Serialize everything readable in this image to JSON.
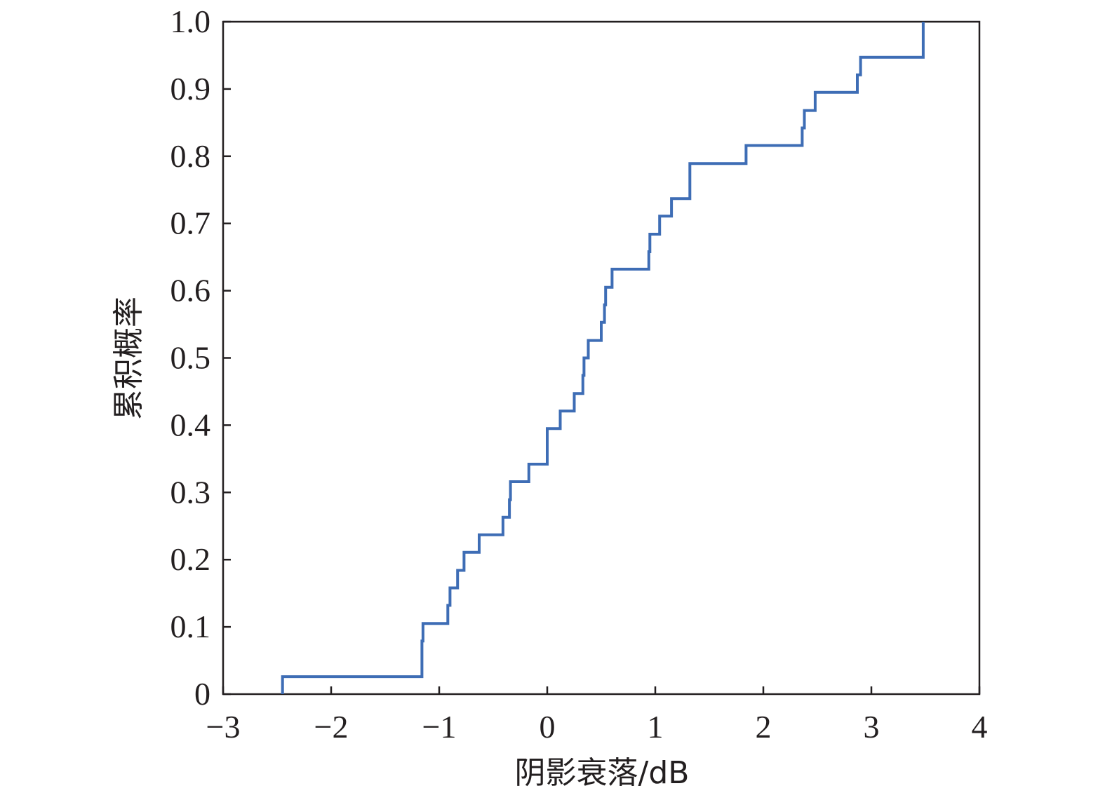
{
  "chart_data": {
    "type": "line",
    "step": true,
    "xlabel": "阴影衰落/dB",
    "ylabel": "累积概率",
    "xlim": [
      -3,
      4
    ],
    "ylim": [
      0,
      1.0
    ],
    "xticks": [
      -3,
      -2,
      -1,
      0,
      1,
      2,
      3,
      4
    ],
    "xtick_labels": [
      "−3",
      "−2",
      "−1",
      "0",
      "1",
      "2",
      "3",
      "4"
    ],
    "yticks": [
      0,
      0.1,
      0.2,
      0.3,
      0.4,
      0.5,
      0.6,
      0.7,
      0.8,
      0.9,
      1.0
    ],
    "ytick_labels": [
      "0",
      "0.1",
      "0.2",
      "0.3",
      "0.4",
      "0.5",
      "0.6",
      "0.7",
      "0.8",
      "0.9",
      "1.0"
    ],
    "grid": false,
    "line_color": "#3e6db5",
    "series": [
      {
        "x": [
          -2.45,
          -2.45,
          -1.16,
          -1.16,
          -1.15,
          -0.92,
          -0.92,
          -0.9,
          -0.83,
          -0.77,
          -0.63,
          -0.41,
          -0.35,
          -0.34,
          -0.18,
          -0.17,
          0.0,
          0.12,
          0.25,
          0.33,
          0.34,
          0.38,
          0.5,
          0.53,
          0.54,
          0.6,
          0.94,
          0.95,
          1.04,
          1.15,
          1.32,
          1.84,
          2.36,
          2.38,
          2.48,
          2.87,
          2.9,
          3.48,
          3.48
        ],
        "y": [
          0.0,
          0.026,
          0.026,
          0.079,
          0.105,
          0.105,
          0.132,
          0.158,
          0.184,
          0.211,
          0.237,
          0.263,
          0.289,
          0.316,
          0.316,
          0.342,
          0.395,
          0.421,
          0.447,
          0.474,
          0.5,
          0.526,
          0.553,
          0.579,
          0.605,
          0.632,
          0.658,
          0.684,
          0.711,
          0.737,
          0.789,
          0.816,
          0.842,
          0.868,
          0.895,
          0.921,
          0.947,
          0.974,
          1.0
        ]
      }
    ]
  }
}
